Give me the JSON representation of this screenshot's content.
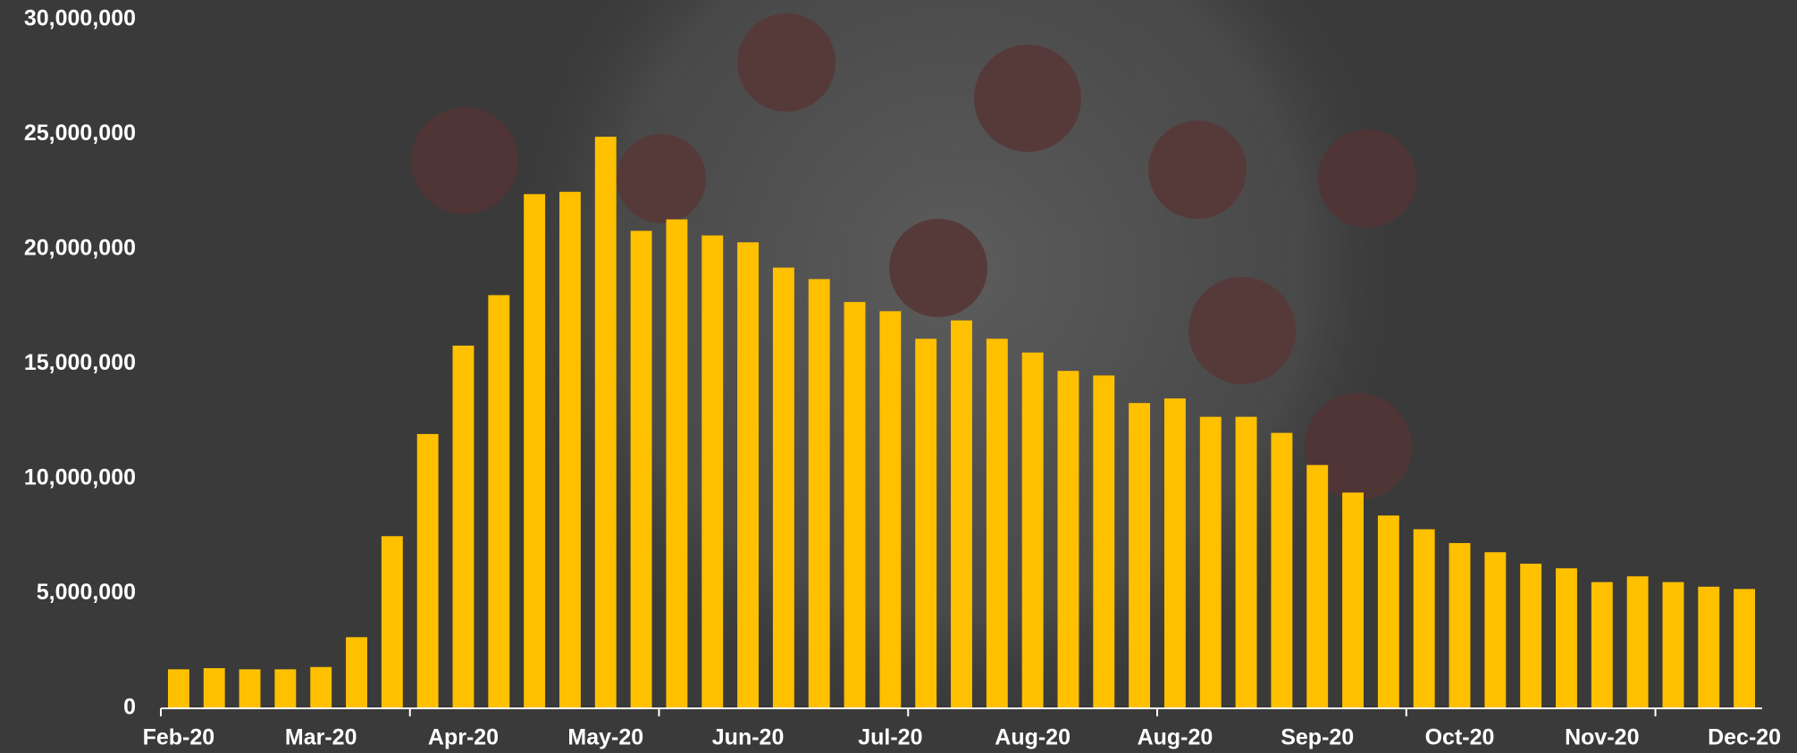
{
  "chart_data": {
    "type": "bar",
    "categories": [
      "Feb-20",
      null,
      null,
      null,
      "Mar-20",
      null,
      null,
      null,
      "Apr-20",
      null,
      null,
      null,
      "May-20",
      null,
      null,
      null,
      "Jun-20",
      null,
      null,
      null,
      "Jul-20",
      null,
      null,
      null,
      "Aug-20",
      null,
      null,
      null,
      "Aug-20",
      null,
      null,
      null,
      "Sep-20",
      null,
      null,
      null,
      "Oct-20",
      null,
      null,
      null,
      "Nov-20",
      null,
      null,
      null,
      "Dec-20"
    ],
    "values": [
      1700000,
      1750000,
      1700000,
      1700000,
      1800000,
      3100000,
      7500000,
      11950000,
      15800000,
      18000000,
      22400000,
      22500000,
      24900000,
      20800000,
      21300000,
      20600000,
      20300000,
      19200000,
      18700000,
      17700000,
      17300000,
      16100000,
      16900000,
      16100000,
      15500000,
      14700000,
      14500000,
      13300000,
      13500000,
      12700000,
      12700000,
      12000000,
      10600000,
      9400000,
      8400000,
      7800000,
      7200000,
      6800000,
      6300000,
      6100000,
      5500000,
      5750000,
      5500000,
      5300000,
      5200000
    ],
    "color": "#ffc000",
    "ylim": [
      0,
      30000000
    ],
    "yticks": [
      {
        "value": 0,
        "label": "0"
      },
      {
        "value": 5000000,
        "label": "5,000,000"
      },
      {
        "value": 10000000,
        "label": "10,000,000"
      },
      {
        "value": 15000000,
        "label": "15,000,000"
      },
      {
        "value": 20000000,
        "label": "20,000,000"
      },
      {
        "value": 25000000,
        "label": "25,000,000"
      },
      {
        "value": 30000000,
        "label": "30,000,000"
      }
    ],
    "grid": false
  }
}
